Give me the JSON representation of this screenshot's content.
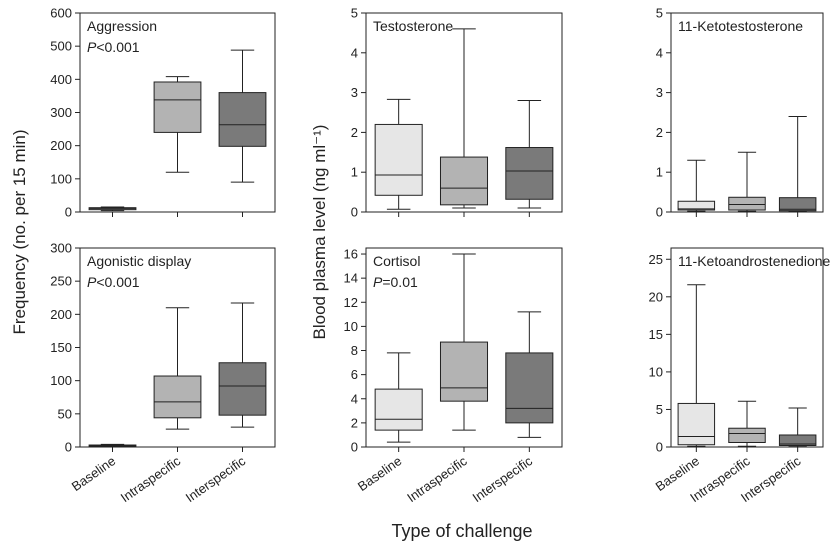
{
  "figure": {
    "y_label_left": "Frequency (no. per 15 min)",
    "y_label_middle": "Blood plasma level (ng ml⁻¹)",
    "x_title": "Type of challenge",
    "categories": [
      "Baseline",
      "Intraspecific",
      "Interspecific"
    ],
    "colors": {
      "Baseline": "#e6e6e6",
      "Intraspecific": "#b3b3b3",
      "Interspecific": "#7a7a7a",
      "line": "#222222"
    }
  },
  "chart_data": [
    {
      "type": "box",
      "title": "Aggression",
      "annotation": "P<0.001",
      "categories": [
        "Baseline",
        "Intraspecific",
        "Interspecific"
      ],
      "ylim": [
        0,
        600
      ],
      "yticks": [
        0,
        100,
        200,
        300,
        400,
        500,
        600
      ],
      "boxes": [
        {
          "min": 4,
          "q1": 7,
          "median": 10,
          "q3": 13,
          "max": 15
        },
        {
          "min": 120,
          "q1": 240,
          "median": 338,
          "q3": 392,
          "max": 408
        },
        {
          "min": 90,
          "q1": 198,
          "median": 263,
          "q3": 360,
          "max": 488
        }
      ]
    },
    {
      "type": "box",
      "title": "Testosterone",
      "annotation": "",
      "categories": [
        "Baseline",
        "Intraspecific",
        "Interspecific"
      ],
      "ylim": [
        0,
        5
      ],
      "yticks": [
        0,
        1,
        2,
        3,
        4,
        5
      ],
      "boxes": [
        {
          "min": 0.07,
          "q1": 0.42,
          "median": 0.93,
          "q3": 2.2,
          "max": 2.83
        },
        {
          "min": 0.1,
          "q1": 0.18,
          "median": 0.6,
          "q3": 1.38,
          "max": 4.6
        },
        {
          "min": 0.1,
          "q1": 0.32,
          "median": 1.03,
          "q3": 1.62,
          "max": 2.8
        }
      ]
    },
    {
      "type": "box",
      "title": "11-Ketotestosterone",
      "annotation": "",
      "categories": [
        "Baseline",
        "Intraspecific",
        "Interspecific"
      ],
      "ylim": [
        0,
        5
      ],
      "yticks": [
        0,
        1,
        2,
        3,
        4,
        5
      ],
      "boxes": [
        {
          "min": 0.02,
          "q1": 0.05,
          "median": 0.08,
          "q3": 0.27,
          "max": 1.3
        },
        {
          "min": 0.02,
          "q1": 0.05,
          "median": 0.19,
          "q3": 0.37,
          "max": 1.5
        },
        {
          "min": 0.02,
          "q1": 0.03,
          "median": 0.07,
          "q3": 0.36,
          "max": 2.4
        }
      ]
    },
    {
      "type": "box",
      "title": "Agonistic display",
      "annotation": "P<0.001",
      "categories": [
        "Baseline",
        "Intraspecific",
        "Interspecific"
      ],
      "ylim": [
        0,
        300
      ],
      "yticks": [
        0,
        50,
        100,
        150,
        200,
        250,
        300
      ],
      "boxes": [
        {
          "min": 0,
          "q1": 1,
          "median": 2,
          "q3": 3,
          "max": 4
        },
        {
          "min": 27,
          "q1": 44,
          "median": 68,
          "q3": 107,
          "max": 210
        },
        {
          "min": 30,
          "q1": 48,
          "median": 92,
          "q3": 127,
          "max": 217
        }
      ]
    },
    {
      "type": "box",
      "title": "Cortisol",
      "annotation": "P=0.01",
      "categories": [
        "Baseline",
        "Intraspecific",
        "Interspecific"
      ],
      "ylim": [
        0,
        16.5
      ],
      "yticks": [
        0,
        2,
        4,
        6,
        8,
        10,
        12,
        14,
        16
      ],
      "boxes": [
        {
          "min": 0.4,
          "q1": 1.4,
          "median": 2.3,
          "q3": 4.8,
          "max": 7.8
        },
        {
          "min": 1.4,
          "q1": 3.8,
          "median": 4.9,
          "q3": 8.7,
          "max": 16
        },
        {
          "min": 0.8,
          "q1": 2.0,
          "median": 3.2,
          "q3": 7.8,
          "max": 11.2
        }
      ]
    },
    {
      "type": "box",
      "title": "11-Ketoandrostenedione",
      "annotation": "",
      "categories": [
        "Baseline",
        "Intraspecific",
        "Interspecific"
      ],
      "ylim": [
        0,
        26.5
      ],
      "yticks": [
        0,
        5,
        10,
        15,
        20,
        25
      ],
      "boxes": [
        {
          "min": 0.1,
          "q1": 0.3,
          "median": 1.4,
          "q3": 5.8,
          "max": 21.6
        },
        {
          "min": 0.1,
          "q1": 0.6,
          "median": 1.8,
          "q3": 2.5,
          "max": 6.1
        },
        {
          "min": 0.05,
          "q1": 0.2,
          "median": 0.4,
          "q3": 1.6,
          "max": 5.2
        }
      ]
    }
  ]
}
